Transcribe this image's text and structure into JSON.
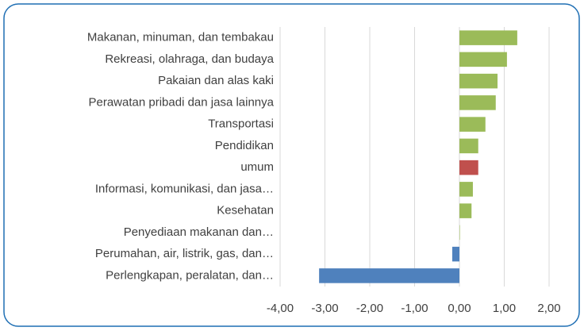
{
  "chart_data": {
    "type": "barh",
    "categories": [
      "Makanan, minuman, dan tembakau",
      "Rekreasi, olahraga, dan budaya",
      "Pakaian dan alas kaki",
      "Perawatan pribadi dan jasa lainnya",
      "Transportasi",
      "Pendidikan",
      "umum",
      "Informasi, komunikasi, dan jasa…",
      "Kesehatan",
      "Penyediaan makanan dan…",
      "Perumahan, air, listrik, gas, dan…",
      "Perlengkapan, peralatan, dan…"
    ],
    "values": [
      1.29,
      1.06,
      0.85,
      0.81,
      0.58,
      0.42,
      0.42,
      0.3,
      0.27,
      0.01,
      -0.16,
      -3.13
    ],
    "colors": [
      "#9bbb59",
      "#9bbb59",
      "#9bbb59",
      "#9bbb59",
      "#9bbb59",
      "#9bbb59",
      "#c0504d",
      "#9bbb59",
      "#9bbb59",
      "#9bbb59",
      "#4f81bd",
      "#4f81bd"
    ],
    "xlim": [
      -4,
      2
    ],
    "xticks": [
      {
        "value": -4,
        "label": "-4,00"
      },
      {
        "value": -3,
        "label": "-3,00"
      },
      {
        "value": -2,
        "label": "-2,00"
      },
      {
        "value": -1,
        "label": "-1,00"
      },
      {
        "value": 0,
        "label": "0,00"
      },
      {
        "value": 1,
        "label": "1,00"
      },
      {
        "value": 2,
        "label": "2,00"
      }
    ],
    "grid": true
  }
}
